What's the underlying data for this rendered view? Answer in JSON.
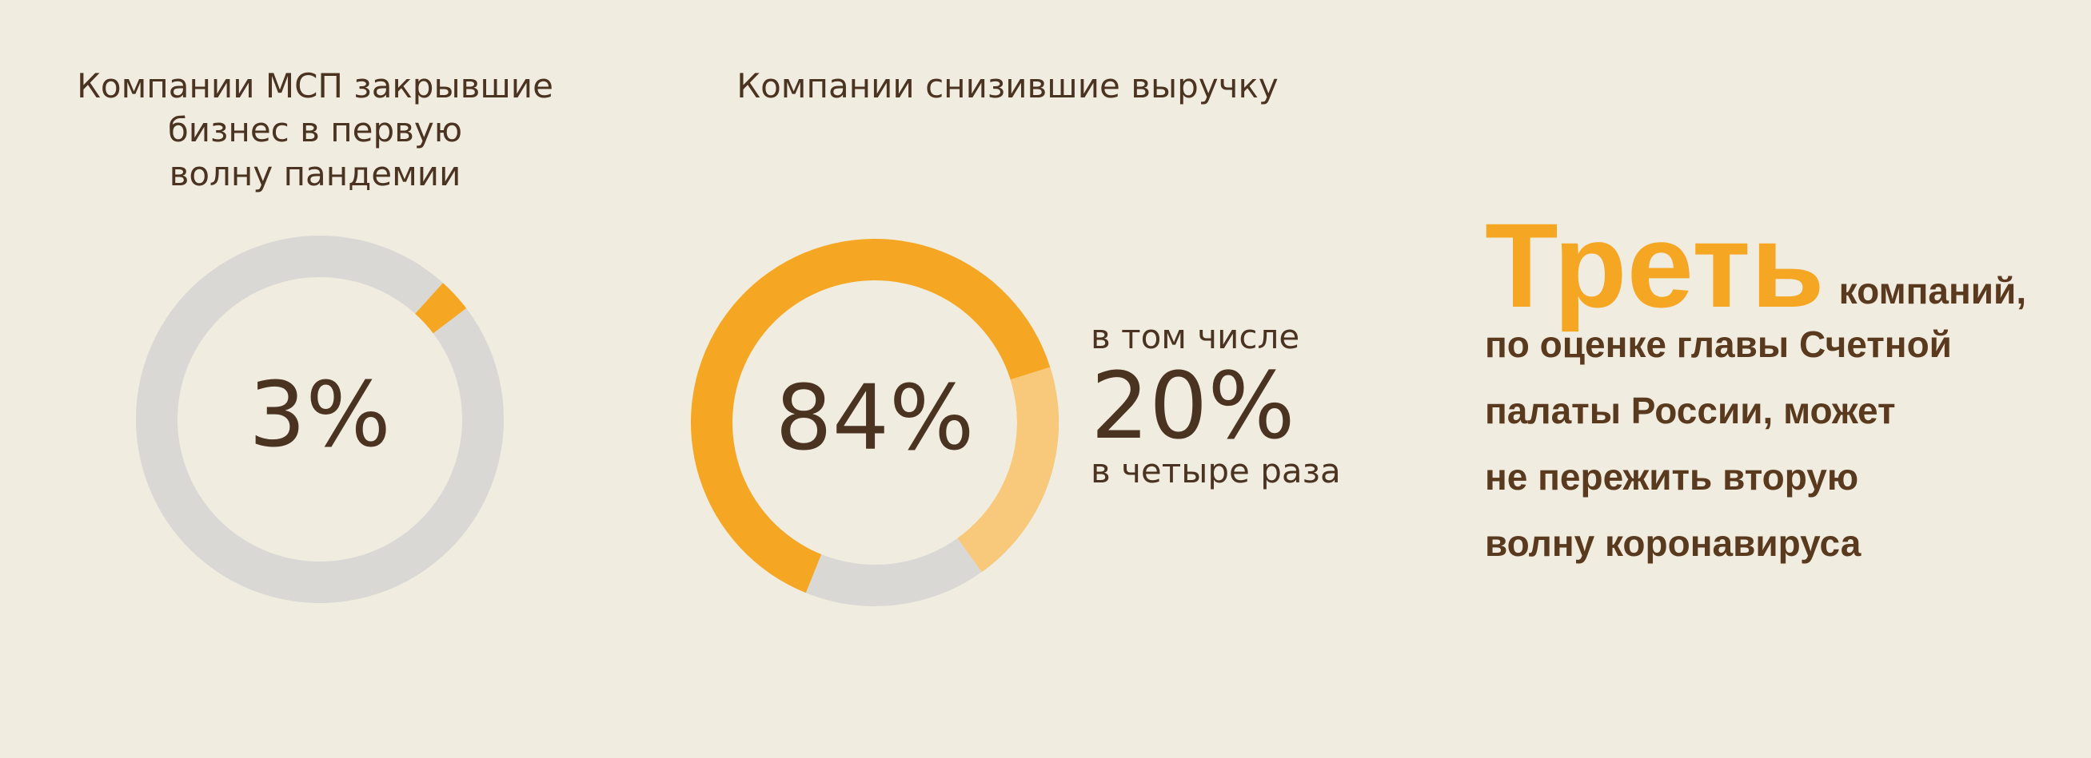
{
  "chart_data": [
    {
      "type": "donut",
      "title": [
        "Компании МСП закрывшие",
        "бизнес в первую",
        "волну пандемии"
      ],
      "values": [
        3,
        97
      ],
      "value_labels": [
        "3%",
        null
      ],
      "colors": [
        "#f5a623",
        "#d9d8d4"
      ]
    },
    {
      "type": "donut",
      "title": [
        "Компании снизившие выручку"
      ],
      "values": [
        84,
        16
      ],
      "value_labels": [
        "84%",
        null
      ],
      "colors": [
        "#f5a623",
        "#d9d8d4"
      ],
      "inset": {
        "value": 20,
        "label": "20%",
        "color": "#f8c97b",
        "text_above": "в том числе",
        "text_below": "в четыре раза"
      }
    }
  ],
  "callout": {
    "headline": "Треть",
    "lines": [
      "компаний,",
      "по оценке главы Счетной",
      "палаты России, может",
      "не пережить вторую",
      "волну коронавируса"
    ]
  }
}
